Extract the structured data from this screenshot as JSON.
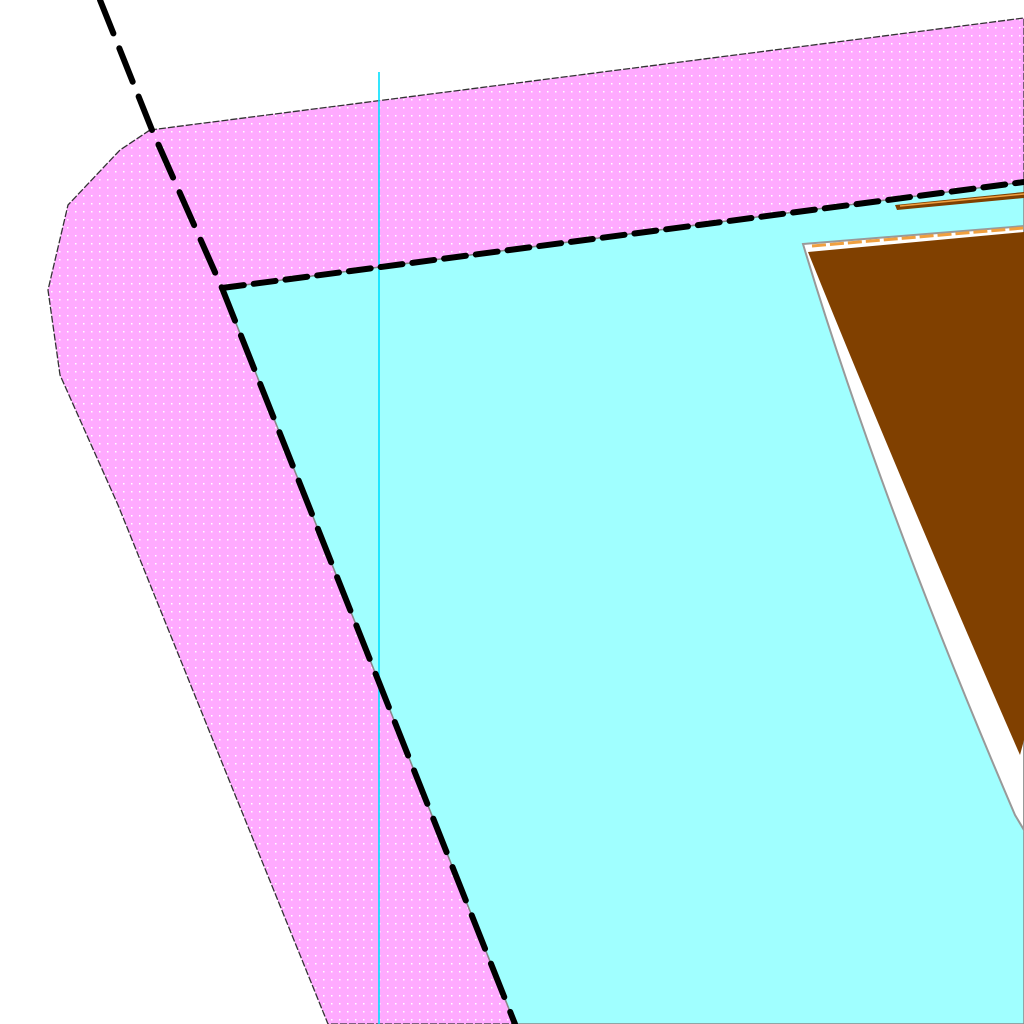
{
  "map": {
    "background_color": "#ffffff",
    "buffer_fill_color": "#ffaaff",
    "buffer_dot_color": "#ffffff",
    "buffer_outline_color": "#333333",
    "water_fill_color": "#a0ffff",
    "water_outline_color": "#888888",
    "boundary_line_color": "#000000",
    "boundary_line_style": "dashed",
    "grid_line_color": "#00e0ff",
    "building_fill_color": "#804000",
    "building_outline_color": "#999999",
    "building_edge_color": "#f0a040",
    "gap_fill_color": "#ffffff",
    "visible_text": []
  }
}
